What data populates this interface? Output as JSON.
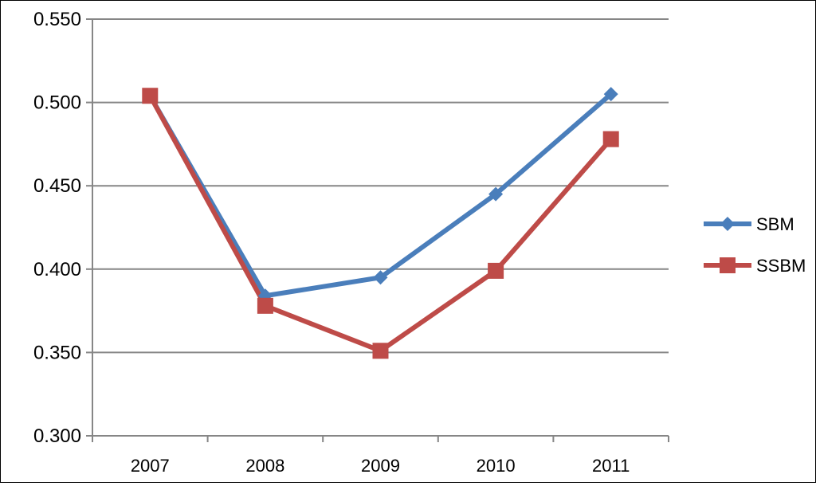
{
  "chart_data": {
    "type": "line",
    "categories": [
      "2007",
      "2008",
      "2009",
      "2010",
      "2011"
    ],
    "series": [
      {
        "name": "SBM",
        "values": [
          0.504,
          0.384,
          0.395,
          0.445,
          0.505
        ],
        "color": "#4a7ebb",
        "marker": "diamond"
      },
      {
        "name": "SSBM",
        "values": [
          0.504,
          0.378,
          0.351,
          0.399,
          0.478
        ],
        "color": "#be4b48",
        "marker": "square"
      }
    ],
    "y_ticks": [
      "0.300",
      "0.350",
      "0.400",
      "0.450",
      "0.500",
      "0.550"
    ],
    "ylim": [
      0.3,
      0.55
    ],
    "grid": true,
    "legend_position": "right"
  }
}
